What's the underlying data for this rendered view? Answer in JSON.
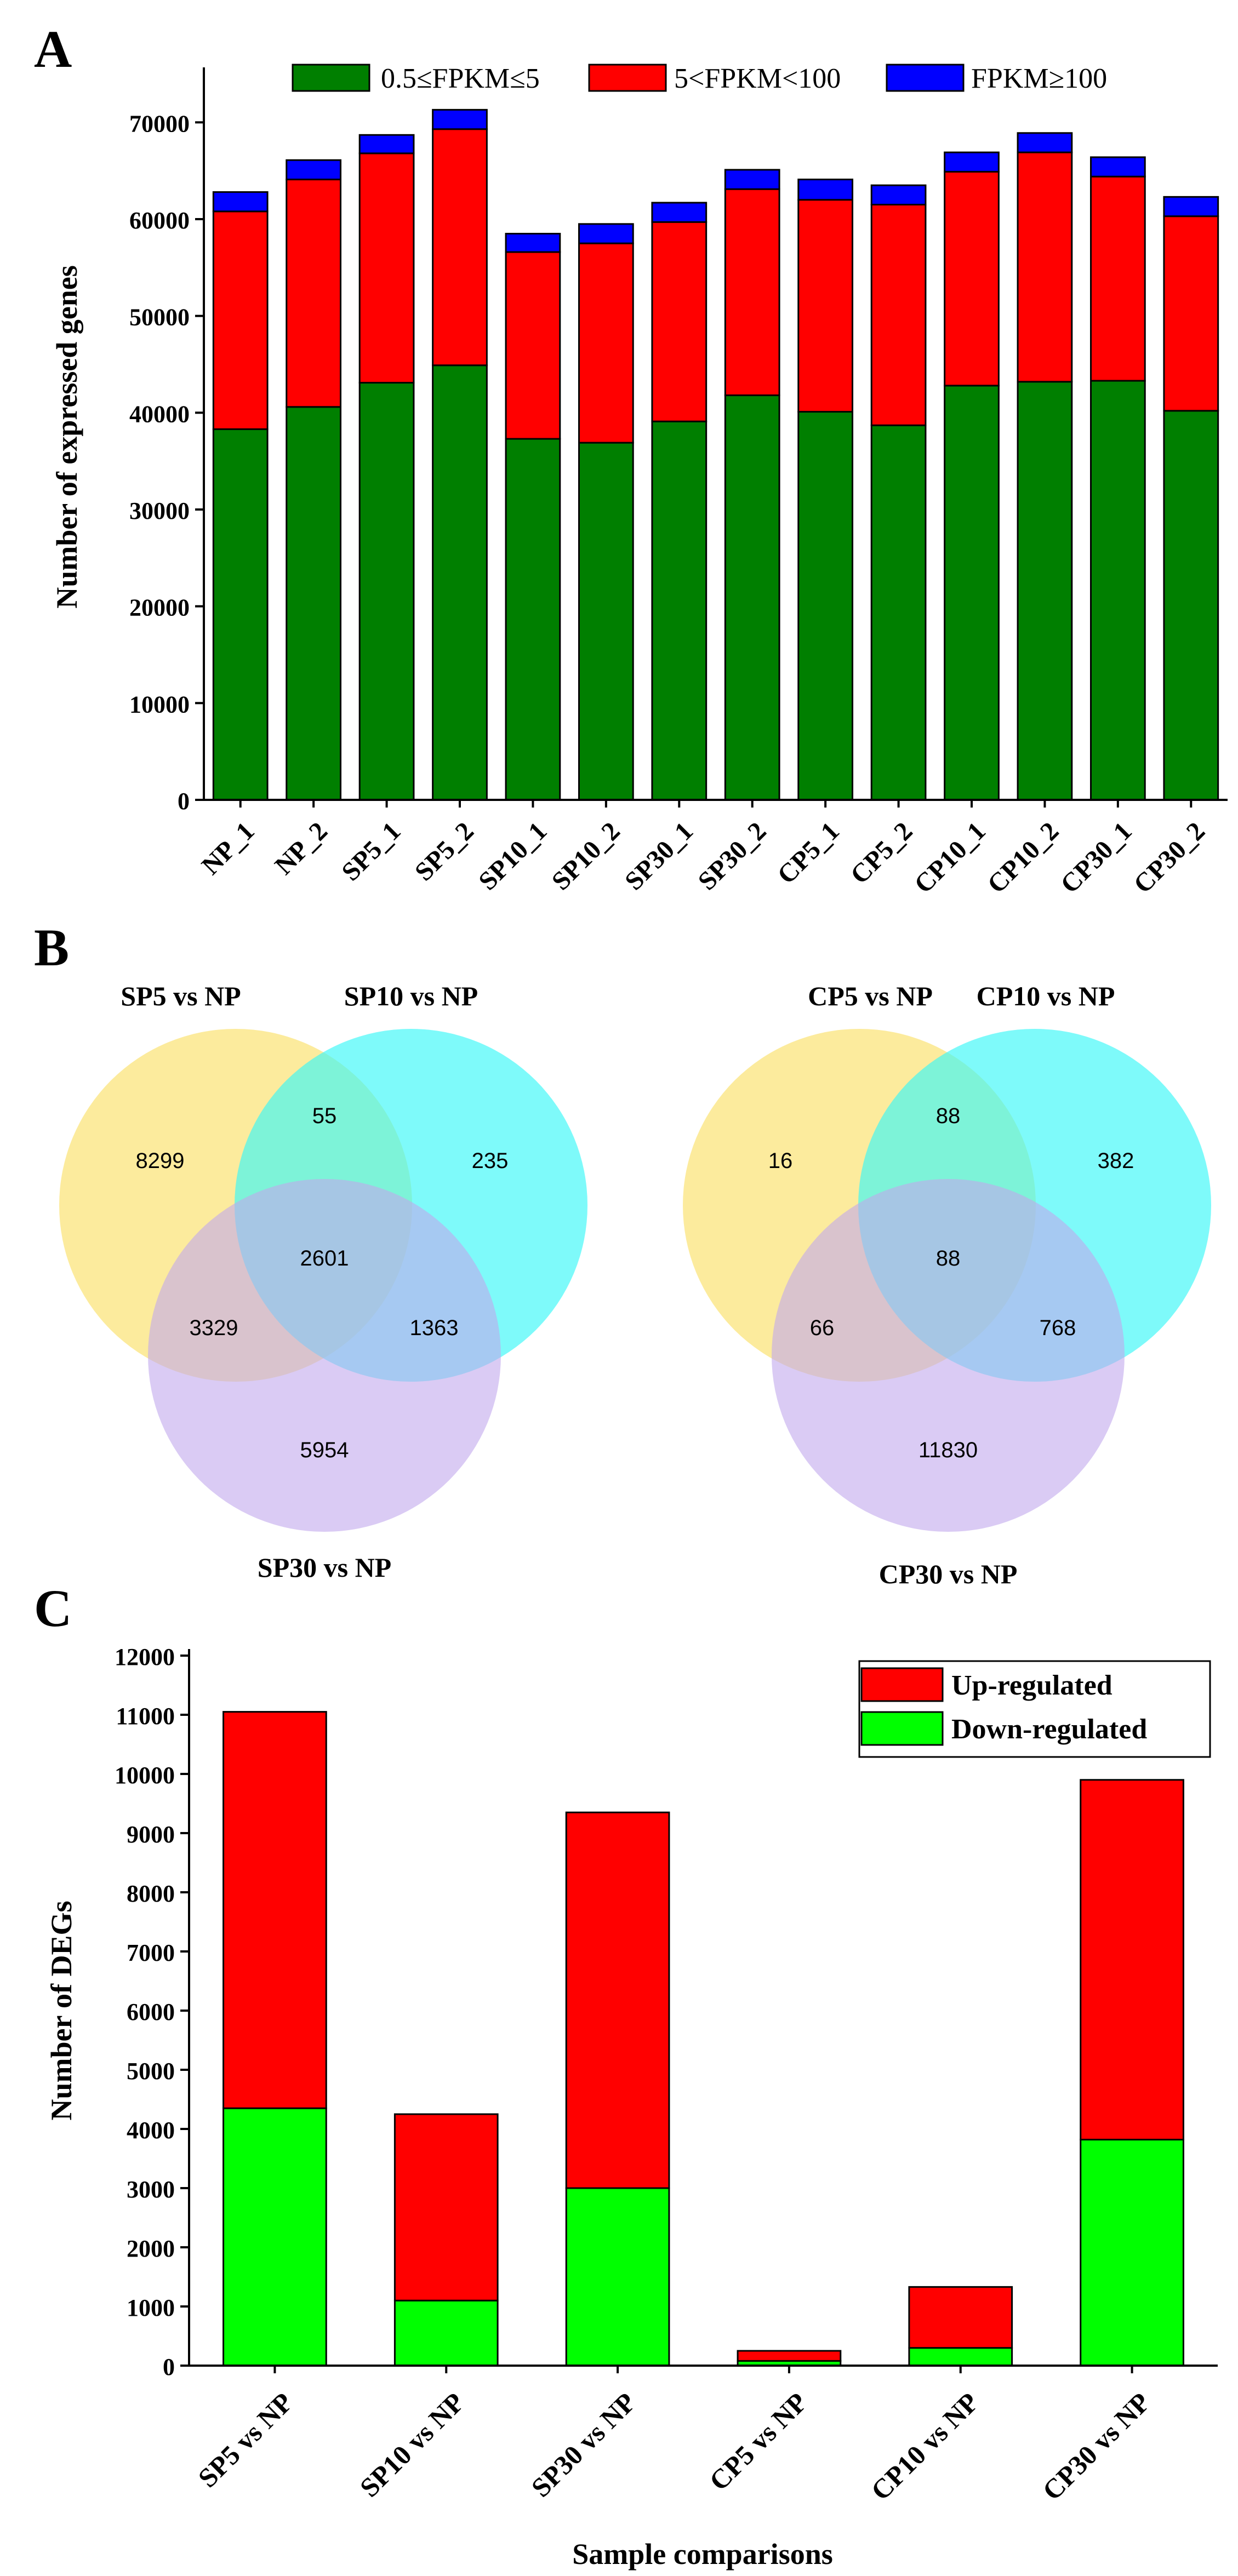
{
  "chart_data": [
    {
      "type": "bar",
      "panel_label": "A",
      "stacked": true,
      "ylabel": "Number of expressed genes",
      "xlabel": "",
      "ylim": [
        0,
        75000
      ],
      "yticks": [
        0,
        10000,
        20000,
        30000,
        40000,
        50000,
        60000,
        70000
      ],
      "ytick_labels": [
        "0",
        "10000",
        "20000",
        "30000",
        "40000",
        "50000",
        "60000",
        "70000"
      ],
      "categories": [
        "NP_1",
        "NP_2",
        "SP5_1",
        "SP5_2",
        "SP10_1",
        "SP10_2",
        "SP30_1",
        "SP30_2",
        "CP5_1",
        "CP5_2",
        "CP10_1",
        "CP10_2",
        "CP30_1",
        "CP30_2"
      ],
      "legend_position": "top",
      "series": [
        {
          "name": "0.5≤FPKM≤5",
          "color": "#007f00",
          "values": [
            38300,
            40600,
            43100,
            44900,
            37300,
            36900,
            39100,
            41800,
            40100,
            38700,
            42800,
            43200,
            43300,
            40200
          ]
        },
        {
          "name": "5<FPKM<100",
          "color": "#ff0000",
          "values": [
            22500,
            23500,
            23700,
            24400,
            19300,
            20600,
            20600,
            21300,
            21900,
            22800,
            22100,
            23700,
            21100,
            20100
          ]
        },
        {
          "name": "FPKM≥100",
          "color": "#0000ff",
          "values": [
            2000,
            2000,
            1900,
            2000,
            1900,
            2000,
            2000,
            2000,
            2100,
            2000,
            2000,
            2000,
            2000,
            2000
          ]
        }
      ]
    },
    {
      "type": "venn",
      "panel_label": "B",
      "diagrams": [
        {
          "sets": [
            "SP5 vs NP",
            "SP10 vs NP",
            "SP30 vs NP"
          ],
          "colors": [
            "#fce88c",
            "#39f7f7",
            "#d2c1ee"
          ],
          "regions": {
            "only_a": "8299",
            "a_b": "55",
            "only_b": "235",
            "a_b_c": "2601",
            "a_c": "3329",
            "b_c": "1363",
            "only_c": "5954"
          }
        },
        {
          "sets": [
            "CP5 vs NP",
            "CP10 vs NP",
            "CP30 vs NP"
          ],
          "colors": [
            "#fce88c",
            "#39f7f7",
            "#d2c1ee"
          ],
          "regions": {
            "only_a": "16",
            "a_b": "88",
            "only_b": "382",
            "a_b_c": "88",
            "a_c": "66",
            "b_c": "768",
            "only_c": "11830"
          }
        }
      ]
    },
    {
      "type": "bar",
      "panel_label": "C",
      "stacked": true,
      "ylabel": "Number of DEGs",
      "xlabel": "Sample comparisons",
      "ylim": [
        0,
        12000
      ],
      "yticks": [
        0,
        1000,
        2000,
        3000,
        4000,
        5000,
        6000,
        7000,
        8000,
        9000,
        10000,
        11000,
        12000
      ],
      "ytick_labels": [
        "0",
        "1000",
        "2000",
        "3000",
        "4000",
        "5000",
        "6000",
        "7000",
        "8000",
        "9000",
        "10000",
        "11000",
        "12000"
      ],
      "categories": [
        "SP5 vs NP",
        "SP10 vs NP",
        "SP30 vs NP",
        "CP5 vs NP",
        "CP10 vs NP",
        "CP30 vs NP"
      ],
      "legend_position": "top-right",
      "series": [
        {
          "name": "Down-regulated",
          "color": "#00ff00",
          "values": [
            4350,
            1100,
            3000,
            80,
            300,
            3820
          ]
        },
        {
          "name": "Up-regulated",
          "color": "#ff0000",
          "values": [
            6700,
            3150,
            6350,
            170,
            1030,
            6080
          ]
        }
      ]
    }
  ]
}
